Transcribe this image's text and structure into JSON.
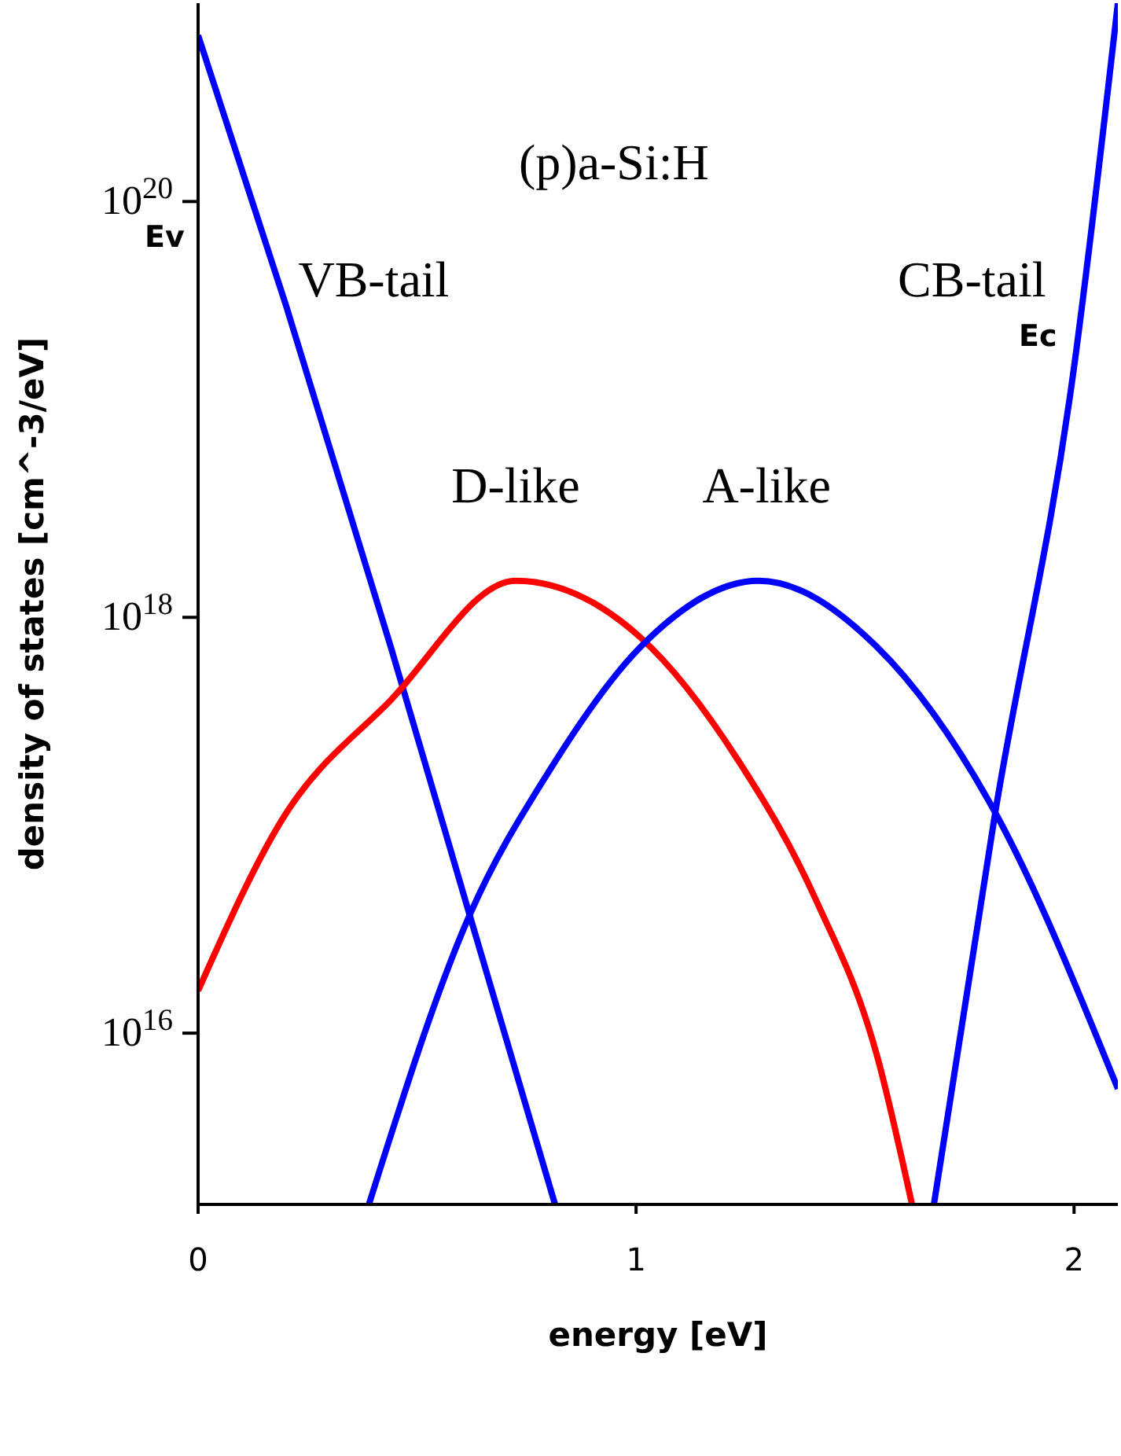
{
  "chart_data": {
    "type": "line",
    "title": "(p)a-Si:H",
    "xlabel": "energy [eV]",
    "ylabel": "density of states [cm^-3/eV]",
    "log": "y",
    "xlim": [
      0,
      2.1
    ],
    "xticks": [
      0,
      1,
      2
    ],
    "ylim": [
      1500000000000000.0,
      9e+20
    ],
    "yticks": [
      {
        "value": 1e+16,
        "label": "10$^{16}$"
      },
      {
        "value": 1e+18,
        "label": "10$^{18}$"
      },
      {
        "value": 1e+20,
        "label": "10$^{20}$"
      }
    ],
    "grid": false,
    "marker": "none",
    "line_style": "solid",
    "annotations": [
      "Ev",
      "Ec"
    ],
    "series": [
      {
        "name": "VB-tail",
        "color": "#0000ff",
        "x": [
          0,
          0.2,
          0.44,
          0.62,
          0.815
        ],
        "values": [
          6.3e+20,
          3.2e+19,
          7.2e+17,
          3.7e+16,
          1500000000000000.0
        ]
      },
      {
        "name": "D-like",
        "color": "#ff0000",
        "x": [
          0,
          0.19,
          0.44,
          0.725,
          1.01,
          1.23,
          1.41,
          1.55,
          1.63
        ],
        "values": [
          1.6e+16,
          1.05e+17,
          4e+17,
          1.5e+18,
          8e+17,
          2.1e+17,
          4.4e+16,
          7800000000000000.0,
          1500000000000000.0
        ]
      },
      {
        "name": "A-like",
        "color": "#0000ff",
        "x": [
          0.39,
          0.62,
          0.8,
          1.01,
          1.28,
          1.55,
          1.82,
          2.1
        ],
        "values": [
          1500000000000000.0,
          3.7e+16,
          1.8e+17,
          7.2e+17,
          1.5e+18,
          7.2e+17,
          1.15e+17,
          5400000000000000.0
        ]
      },
      {
        "name": "CB-tail",
        "color": "#0000ff",
        "x": [
          1.68,
          1.82,
          2.0,
          2.1
        ],
        "values": [
          1500000000000000.0,
          1.15e+17,
          1.6e+19,
          9e+20
        ]
      }
    ]
  }
}
